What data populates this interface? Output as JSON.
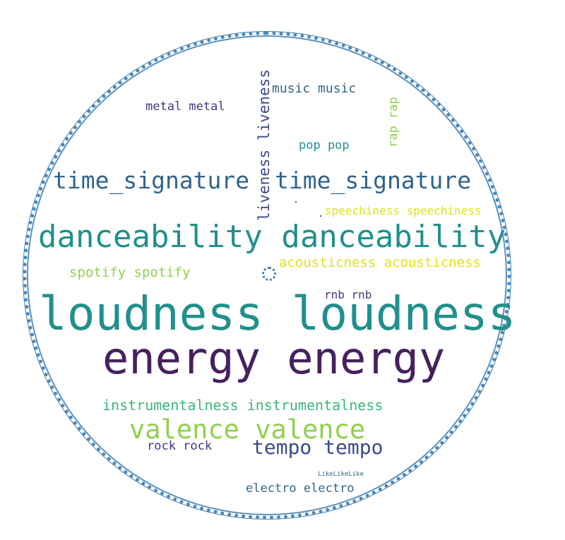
{
  "colors": {
    "outline": "#4a87b8",
    "dark_purple": "#46205f",
    "navy": "#3b4b87",
    "blue": "#30648c",
    "teal": "#21908c",
    "green": "#3bb77a",
    "lime": "#8fd14b",
    "yellow": "#dce319"
  },
  "words": {
    "loudness": "loudness loudness",
    "energy": "energy energy",
    "danceability": "danceability danceability",
    "time_signature_left": "time_signature",
    "time_signature_right": "time_signature",
    "liveness": "liveness liveness",
    "valence": "valence valence",
    "tempo": "tempo tempo",
    "instrumentalness": "instrumentalness instrumentalness",
    "acousticness": "acousticness acousticness",
    "speechiness": "speechiness speechiness",
    "spotify": "spotify spotify",
    "music": "music music",
    "metal": "metal metal",
    "pop": "pop pop",
    "rap": "rap rap",
    "rnb": "rnb rnb",
    "rock": "rock rock",
    "electro": "electro electro",
    "like": "LikeLikeLike"
  }
}
